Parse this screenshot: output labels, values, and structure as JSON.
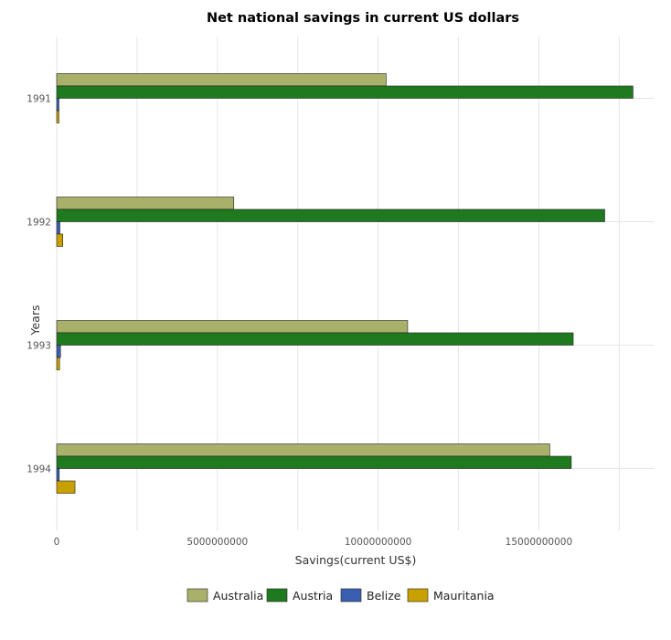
{
  "chart_data": {
    "type": "bar",
    "orientation": "horizontal",
    "title": "Net national savings in current US dollars",
    "xlabel": "Savings(current US$)",
    "ylabel": "Years",
    "categories": [
      "1991",
      "1992",
      "1993",
      "1994"
    ],
    "xlim": [
      0,
      18600000000
    ],
    "xticks": [
      0,
      5000000000,
      10000000000,
      15000000000
    ],
    "xtick_labels": [
      "0",
      "5000000000",
      "10000000000",
      "15000000000"
    ],
    "grid": true,
    "legend_position": "bottom",
    "series": [
      {
        "name": "Australia",
        "color": "#a8b06a",
        "values": [
          10250000000,
          5510000000,
          10920000000,
          15340000000
        ]
      },
      {
        "name": "Austria",
        "color": "#1f7a1f",
        "values": [
          17930000000,
          17050000000,
          16070000000,
          16010000000
        ]
      },
      {
        "name": "Belize",
        "color": "#3a5fb0",
        "values": [
          70000000,
          100000000,
          120000000,
          80000000
        ]
      },
      {
        "name": "Mauritania",
        "color": "#c8a000",
        "values": [
          70000000,
          190000000,
          90000000,
          570000000
        ]
      }
    ]
  }
}
